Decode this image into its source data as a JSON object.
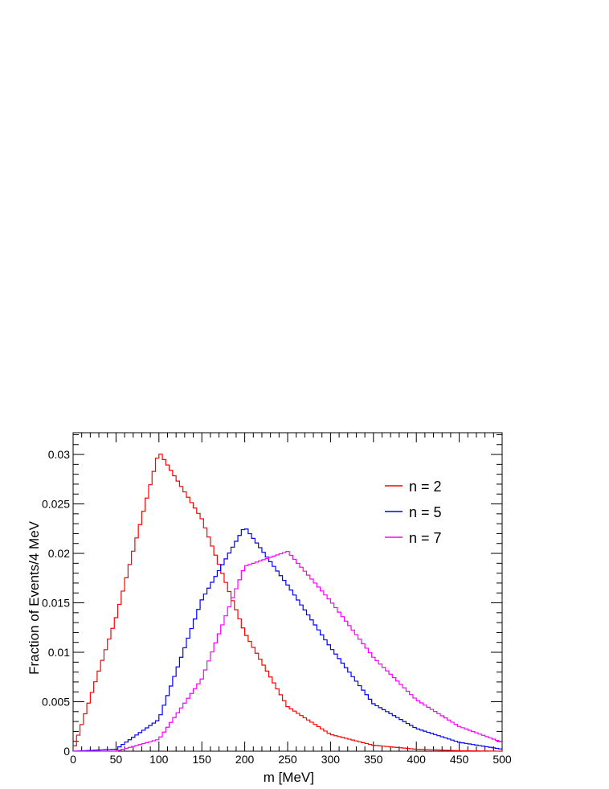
{
  "chart_data": {
    "type": "line",
    "title": "",
    "xlabel": "m [MeV]",
    "ylabel": "Fraction of Events/4 MeV",
    "xlim": [
      0,
      500
    ],
    "ylim": [
      0,
      0.0322
    ],
    "bin_width": 4,
    "x_ticks": [
      0,
      50,
      100,
      150,
      200,
      250,
      300,
      350,
      400,
      450,
      500
    ],
    "x_tick_labels": [
      "0",
      "50",
      "100",
      "150",
      "200",
      "250",
      "300",
      "350",
      "400",
      "450",
      "500"
    ],
    "y_ticks": [
      0,
      0.005,
      0.01,
      0.015,
      0.02,
      0.025,
      0.03
    ],
    "y_tick_labels": [
      "0",
      "0.005",
      "0.01",
      "0.015",
      "0.02",
      "0.025",
      "0.03"
    ],
    "legend_position": "top-right",
    "series": [
      {
        "name": "n = 2",
        "color": "#ff0000",
        "x": [
          0,
          50,
          100,
          150,
          200,
          250,
          300,
          350,
          400,
          450,
          500
        ],
        "values": [
          0,
          0.0135,
          0.0303,
          0.0235,
          0.012,
          0.0045,
          0.0017,
          0.0006,
          0.0002,
          5e-05,
          0
        ]
      },
      {
        "name": "n = 5",
        "color": "#0000ff",
        "x": [
          0,
          50,
          100,
          150,
          200,
          250,
          300,
          350,
          400,
          450,
          500
        ],
        "values": [
          0,
          0.0002,
          0.0032,
          0.0153,
          0.0227,
          0.0168,
          0.0105,
          0.0048,
          0.0023,
          0.0009,
          0.0002
        ]
      },
      {
        "name": "n = 7",
        "color": "#ff00ff",
        "x": [
          0,
          50,
          100,
          150,
          200,
          250,
          300,
          350,
          400,
          450,
          500
        ],
        "values": [
          0,
          0,
          0.0012,
          0.0073,
          0.0187,
          0.0202,
          0.0152,
          0.0095,
          0.0052,
          0.0025,
          0.0009
        ]
      }
    ]
  }
}
